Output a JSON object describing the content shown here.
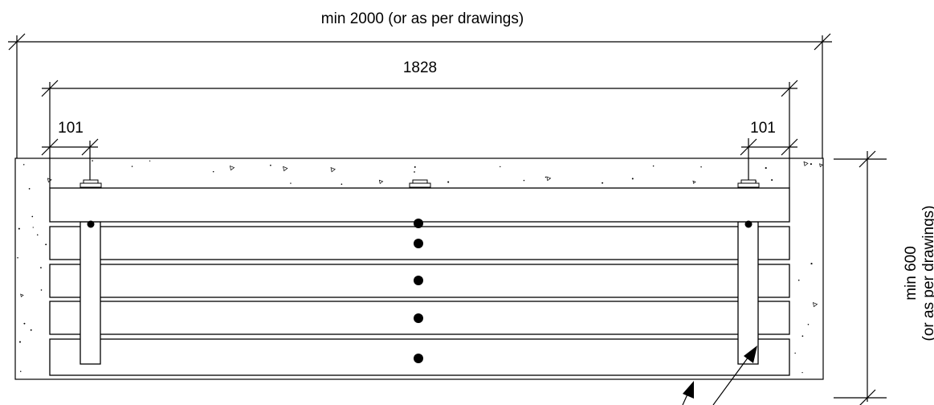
{
  "dimensions": {
    "overall_width": "min 2000 (or as per drawings)",
    "bench_length": "1828",
    "left_offset": "101",
    "right_offset": "101",
    "height_line1": "min 600",
    "height_line2": "(or as per drawings)"
  }
}
